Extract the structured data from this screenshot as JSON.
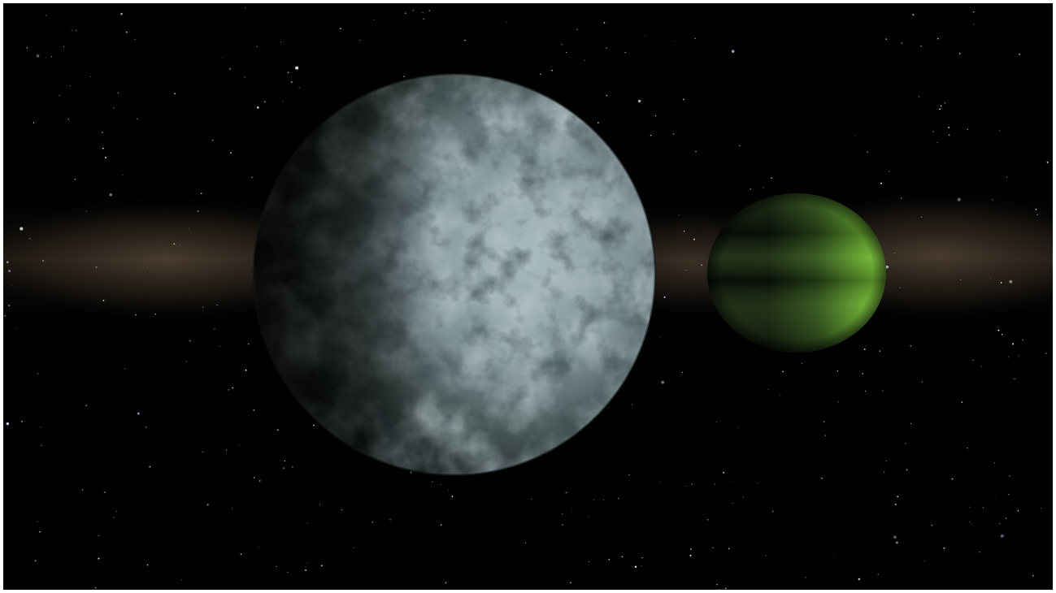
{
  "scene": {
    "colors": {
      "space": "#000000",
      "frame": "#ffffff",
      "galaxy_band": "#6e5a46",
      "rocky_moon_light": "#9fb2b8",
      "rocky_moon_mid": "#6e8086",
      "rocky_moon_dark": "#101516",
      "gas_planet_light": "#6fae32",
      "gas_planet_dark": "#050805"
    },
    "bodies": [
      {
        "kind": "rocky-moon",
        "lit_side": "right"
      },
      {
        "kind": "gas-planet",
        "lit_side": "right"
      }
    ],
    "starfield": {
      "star_count": 420
    }
  }
}
